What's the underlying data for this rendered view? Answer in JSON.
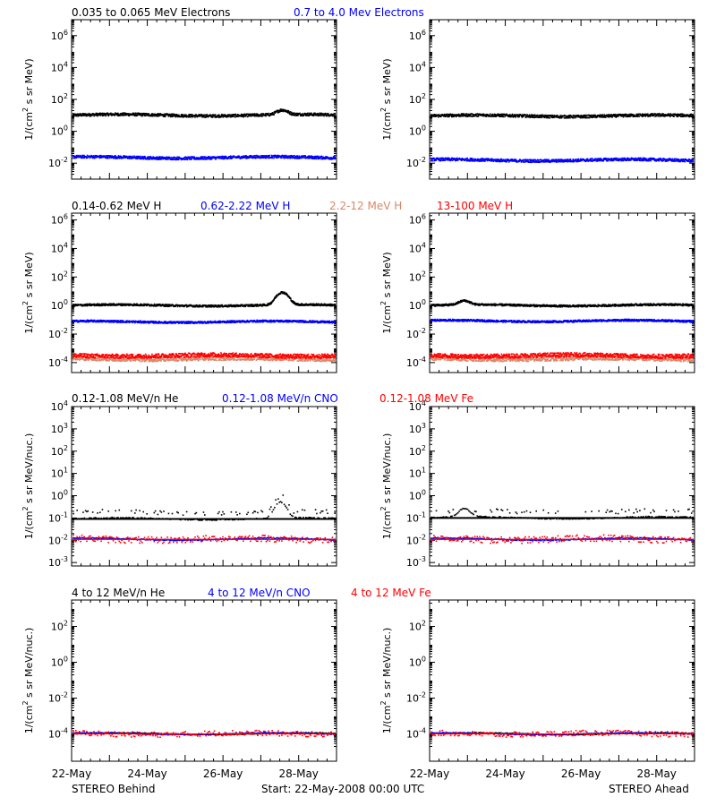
{
  "colors": {
    "black": "#000000",
    "blue": "#0000ff",
    "salmon": "#d9876a",
    "red": "#ff0000"
  },
  "labels": {
    "row1": [
      {
        "text": "0.035 to 0.065 MeV Electrons",
        "color": "#000000"
      },
      {
        "text": "0.7 to 4.0 Mev Electrons",
        "color": "#0000ff"
      }
    ],
    "row2": [
      {
        "text": "0.14-0.62 MeV H",
        "color": "#000000"
      },
      {
        "text": "0.62-2.22 MeV H",
        "color": "#0000ff"
      },
      {
        "text": "2.2-12 MeV H",
        "color": "#d9876a"
      },
      {
        "text": "13-100 MeV H",
        "color": "#ff0000"
      }
    ],
    "row3": [
      {
        "text": "0.12-1.08 MeV/n He",
        "color": "#000000"
      },
      {
        "text": "0.12-1.08 MeV/n CNO",
        "color": "#0000ff"
      },
      {
        "text": "0.12-1.08 MeV Fe",
        "color": "#ff0000"
      }
    ],
    "row4": [
      {
        "text": "4 to 12 MeV/n He",
        "color": "#000000"
      },
      {
        "text": "4 to 12 MeV/n CNO",
        "color": "#0000ff"
      },
      {
        "text": "4 to 12 MeV Fe",
        "color": "#ff0000"
      }
    ]
  },
  "ylabels": {
    "per_mev_prefix": "1/(cm",
    "per_mev_sup": "2",
    "per_mev_suffix": " s sr MeV)",
    "per_nuc_prefix": "1/(cm",
    "per_nuc_sup": "2",
    "per_nuc_suffix": " s sr MeV/nuc.)"
  },
  "footer": {
    "left": "STEREO Behind",
    "center": "Start: 22-May-2008 00:00 UTC",
    "right": "STEREO Ahead"
  },
  "chart_data": [
    {
      "type": "scatter",
      "panel": "behind-electrons",
      "scale": "log",
      "ylim": [
        0.001,
        10000000
      ],
      "yticks": [
        {
          "base": "10",
          "exp": "6"
        },
        {
          "base": "10",
          "exp": "4"
        },
        {
          "base": "10",
          "exp": "2"
        },
        {
          "base": "10",
          "exp": "0"
        },
        {
          "base": "10",
          "exp": "-2"
        }
      ],
      "ytick_values": [
        1000000,
        10000,
        100,
        1,
        0.01
      ],
      "xticks": [
        "22-May",
        "24-May",
        "26-May",
        "28-May"
      ],
      "xlim_days": [
        0,
        7
      ],
      "series": [
        {
          "name": "0.035 to 0.065 MeV Electrons",
          "color": "#000000",
          "level": 10,
          "peak_day": 5.55,
          "peak_value": 20
        },
        {
          "name": "0.7 to 4.0 Mev Electrons",
          "color": "#0000ff",
          "level": 0.022,
          "peak_day": null,
          "peak_value": null
        }
      ]
    },
    {
      "type": "scatter",
      "panel": "ahead-electrons",
      "scale": "log",
      "ylim": [
        0.001,
        10000000
      ],
      "yticks": [
        {
          "base": "10",
          "exp": "6"
        },
        {
          "base": "10",
          "exp": "4"
        },
        {
          "base": "10",
          "exp": "2"
        },
        {
          "base": "10",
          "exp": "0"
        },
        {
          "base": "10",
          "exp": "-2"
        }
      ],
      "ytick_values": [
        1000000,
        10000,
        100,
        1,
        0.01
      ],
      "xticks": [
        "22-May",
        "24-May",
        "26-May",
        "28-May"
      ],
      "xlim_days": [
        0,
        7
      ],
      "series": [
        {
          "name": "0.035 to 0.065 MeV Electrons",
          "color": "#000000",
          "level": 9,
          "peak_day": null,
          "peak_value": null
        },
        {
          "name": "0.7 to 4.0 Mev Electrons",
          "color": "#0000ff",
          "level": 0.015,
          "peak_day": null,
          "peak_value": null
        }
      ]
    },
    {
      "type": "scatter",
      "panel": "behind-protons",
      "scale": "log",
      "ylim": [
        2e-05,
        3000000
      ],
      "yticks": [
        {
          "base": "10",
          "exp": "6"
        },
        {
          "base": "10",
          "exp": "4"
        },
        {
          "base": "10",
          "exp": "2"
        },
        {
          "base": "10",
          "exp": "0"
        },
        {
          "base": "10",
          "exp": "-2"
        },
        {
          "base": "10",
          "exp": "-4"
        }
      ],
      "ytick_values": [
        1000000,
        10000,
        100,
        1,
        0.01,
        0.0001
      ],
      "xticks": [
        "22-May",
        "24-May",
        "26-May",
        "28-May"
      ],
      "xlim_days": [
        0,
        7
      ],
      "series": [
        {
          "name": "0.14-0.62 MeV H",
          "color": "#000000",
          "level": 1.0,
          "peak_day": 5.55,
          "peak_value": 8
        },
        {
          "name": "0.62-2.22 MeV H",
          "color": "#0000ff",
          "level": 0.07,
          "peak_day": null,
          "peak_value": null
        },
        {
          "name": "2.2-12 MeV H",
          "color": "#d9876a",
          "level": 0.00018,
          "peak_day": null,
          "peak_value": null
        },
        {
          "name": "13-100 MeV H",
          "color": "#ff0000",
          "level": 0.0003,
          "peak_day": null,
          "peak_value": null
        }
      ]
    },
    {
      "type": "scatter",
      "panel": "ahead-protons",
      "scale": "log",
      "ylim": [
        2e-05,
        3000000
      ],
      "yticks": [
        {
          "base": "10",
          "exp": "6"
        },
        {
          "base": "10",
          "exp": "4"
        },
        {
          "base": "10",
          "exp": "2"
        },
        {
          "base": "10",
          "exp": "0"
        },
        {
          "base": "10",
          "exp": "-2"
        },
        {
          "base": "10",
          "exp": "-4"
        }
      ],
      "ytick_values": [
        1000000,
        10000,
        100,
        1,
        0.01,
        0.0001
      ],
      "xticks": [
        "22-May",
        "24-May",
        "26-May",
        "28-May"
      ],
      "xlim_days": [
        0,
        7
      ],
      "series": [
        {
          "name": "0.14-0.62 MeV H",
          "color": "#000000",
          "level": 1.0,
          "peak_day": 0.9,
          "peak_value": 2
        },
        {
          "name": "0.62-2.22 MeV H",
          "color": "#0000ff",
          "level": 0.08,
          "peak_day": null,
          "peak_value": null
        },
        {
          "name": "2.2-12 MeV H",
          "color": "#d9876a",
          "level": 0.00018,
          "peak_day": null,
          "peak_value": null
        },
        {
          "name": "13-100 MeV H",
          "color": "#ff0000",
          "level": 0.0003,
          "peak_day": null,
          "peak_value": null
        }
      ]
    },
    {
      "type": "scatter",
      "panel": "behind-low-energy-ions",
      "scale": "log",
      "ylim": [
        0.0007,
        10000
      ],
      "yticks": [
        {
          "base": "10",
          "exp": "4"
        },
        {
          "base": "10",
          "exp": "3"
        },
        {
          "base": "10",
          "exp": "2"
        },
        {
          "base": "10",
          "exp": "1"
        },
        {
          "base": "10",
          "exp": "0"
        },
        {
          "base": "10",
          "exp": "-1"
        },
        {
          "base": "10",
          "exp": "-2"
        },
        {
          "base": "10",
          "exp": "-3"
        }
      ],
      "ytick_values": [
        10000,
        1000,
        100,
        10,
        1,
        0.1,
        0.01,
        0.001
      ],
      "xticks": [
        "22-May",
        "24-May",
        "26-May",
        "28-May"
      ],
      "xlim_days": [
        0,
        7
      ],
      "series": [
        {
          "name": "0.12-1.08 MeV/n He",
          "color": "#000000",
          "level": 0.09,
          "peak_day": 5.5,
          "peak_value": 0.5
        },
        {
          "name": "0.12-1.08 MeV/n CNO",
          "color": "#0000ff",
          "level": 0.011,
          "peak_day": null,
          "peak_value": null
        },
        {
          "name": "0.12-1.08 MeV Fe",
          "color": "#ff0000",
          "level": 0.011,
          "peak_day": null,
          "peak_value": null
        }
      ]
    },
    {
      "type": "scatter",
      "panel": "ahead-low-energy-ions",
      "scale": "log",
      "ylim": [
        0.0007,
        10000
      ],
      "yticks": [
        {
          "base": "10",
          "exp": "4"
        },
        {
          "base": "10",
          "exp": "3"
        },
        {
          "base": "10",
          "exp": "2"
        },
        {
          "base": "10",
          "exp": "1"
        },
        {
          "base": "10",
          "exp": "0"
        },
        {
          "base": "10",
          "exp": "-1"
        },
        {
          "base": "10",
          "exp": "-2"
        },
        {
          "base": "10",
          "exp": "-3"
        }
      ],
      "ytick_values": [
        10000,
        1000,
        100,
        10,
        1,
        0.1,
        0.01,
        0.001
      ],
      "xticks": [
        "22-May",
        "24-May",
        "26-May",
        "28-May"
      ],
      "xlim_days": [
        0,
        7
      ],
      "series": [
        {
          "name": "0.12-1.08 MeV/n He",
          "color": "#000000",
          "level": 0.1,
          "peak_day": 0.9,
          "peak_value": 0.25
        },
        {
          "name": "0.12-1.08 MeV/n CNO",
          "color": "#0000ff",
          "level": 0.011,
          "peak_day": null,
          "peak_value": null
        },
        {
          "name": "0.12-1.08 MeV Fe",
          "color": "#ff0000",
          "level": 0.011,
          "peak_day": null,
          "peak_value": null
        }
      ]
    },
    {
      "type": "scatter",
      "panel": "behind-high-energy-ions",
      "scale": "log",
      "ylim": [
        3e-06,
        3000
      ],
      "yticks": [
        {
          "base": "10",
          "exp": "2"
        },
        {
          "base": "10",
          "exp": "0"
        },
        {
          "base": "10",
          "exp": "-2"
        },
        {
          "base": "10",
          "exp": "-4"
        }
      ],
      "ytick_values": [
        100,
        1,
        0.01,
        0.0001
      ],
      "xticks": [
        "22-May",
        "24-May",
        "26-May",
        "28-May"
      ],
      "xlim_days": [
        0,
        7
      ],
      "series": [
        {
          "name": "4 to 12 MeV/n He",
          "color": "#000000",
          "level": 0.0001,
          "peak_day": null,
          "peak_value": null
        },
        {
          "name": "4 to 12 MeV/n CNO",
          "color": "#0000ff",
          "level": 0.0001,
          "peak_day": null,
          "peak_value": null
        },
        {
          "name": "4 to 12 MeV Fe",
          "color": "#ff0000",
          "level": 0.0001,
          "peak_day": null,
          "peak_value": null
        }
      ]
    },
    {
      "type": "scatter",
      "panel": "ahead-high-energy-ions",
      "scale": "log",
      "ylim": [
        3e-06,
        3000
      ],
      "yticks": [
        {
          "base": "10",
          "exp": "2"
        },
        {
          "base": "10",
          "exp": "0"
        },
        {
          "base": "10",
          "exp": "-2"
        },
        {
          "base": "10",
          "exp": "-4"
        }
      ],
      "ytick_values": [
        100,
        1,
        0.01,
        0.0001
      ],
      "xticks": [
        "22-May",
        "24-May",
        "26-May",
        "28-May"
      ],
      "xlim_days": [
        0,
        7
      ],
      "series": [
        {
          "name": "4 to 12 MeV/n He",
          "color": "#000000",
          "level": 0.0001,
          "peak_day": null,
          "peak_value": null
        },
        {
          "name": "4 to 12 MeV/n CNO",
          "color": "#0000ff",
          "level": 0.0001,
          "peak_day": null,
          "peak_value": null
        },
        {
          "name": "4 to 12 MeV Fe",
          "color": "#ff0000",
          "level": 0.0001,
          "peak_day": null,
          "peak_value": null
        }
      ]
    }
  ]
}
